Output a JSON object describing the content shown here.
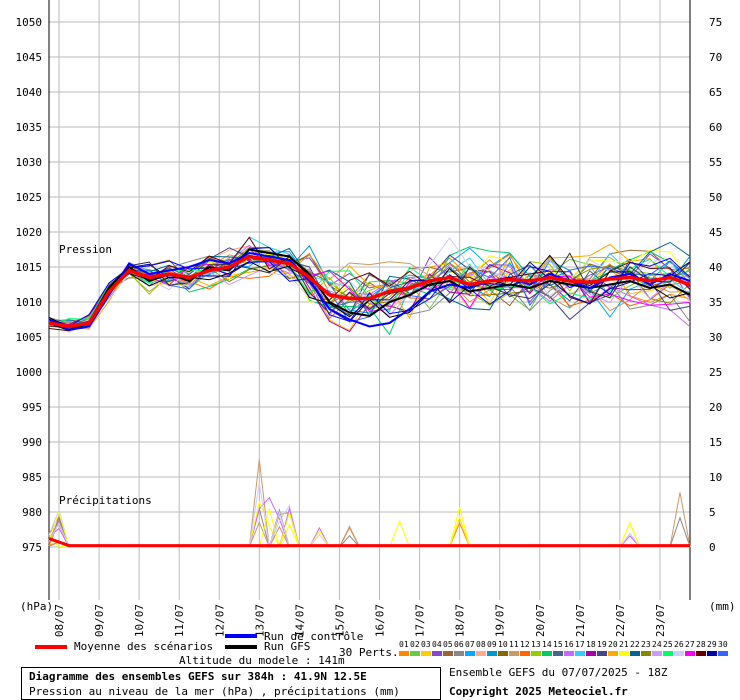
{
  "chart_data": {
    "type": "line",
    "title": "Diagramme des ensembles GEFS sur 384h : 41.9N 12.5E",
    "subtitle": "Pression au niveau de la mer (hPa) , précipitations (mm)",
    "left_axis": {
      "label": "(hPa)",
      "ticks": [
        1050,
        1045,
        1040,
        1035,
        1030,
        1025,
        1020,
        1015,
        1010,
        1005,
        1000,
        995,
        990,
        985,
        980,
        975
      ],
      "ylim": [
        972,
        1052
      ]
    },
    "right_axis": {
      "label": "(mm)",
      "ticks": [
        75,
        70,
        65,
        60,
        55,
        50,
        45,
        40,
        35,
        30,
        25,
        20,
        15,
        10,
        5,
        0
      ]
    },
    "x_ticks": [
      "08/07",
      "09/07",
      "10/07",
      "11/07",
      "12/07",
      "13/07",
      "14/07",
      "15/07",
      "16/07",
      "17/07",
      "18/07",
      "19/07",
      "20/07",
      "21/07",
      "22/07",
      "23/07"
    ],
    "xlim": [
      0,
      384
    ],
    "grid": true,
    "annotations": {
      "pressure": "Pression",
      "precip": "Précipitations"
    },
    "series": [
      {
        "name": "Moyenne des scénarios",
        "color": "#ff0000",
        "x": [
          0,
          12,
          24,
          36,
          48,
          60,
          72,
          84,
          96,
          108,
          120,
          132,
          144,
          156,
          168,
          180,
          192,
          204,
          216,
          228,
          240,
          252,
          264,
          276,
          288,
          300,
          312,
          324,
          336,
          348,
          360,
          372,
          384
        ],
        "values": [
          1007,
          1006.5,
          1007,
          1011.5,
          1014.5,
          1013.5,
          1014,
          1013.5,
          1014.5,
          1015,
          1016.5,
          1016,
          1015.5,
          1013.5,
          1011,
          1010.5,
          1010.5,
          1011.5,
          1012,
          1013,
          1013.5,
          1012.5,
          1013,
          1013.2,
          1013,
          1013.5,
          1013,
          1012.8,
          1013.3,
          1013.5,
          1013,
          1013.5,
          1012.5
        ]
      },
      {
        "name": "Run de contrôle",
        "color": "#0000ff",
        "x": [
          0,
          12,
          24,
          36,
          48,
          60,
          72,
          84,
          96,
          108,
          120,
          132,
          144,
          156,
          168,
          180,
          192,
          204,
          216,
          228,
          240,
          252,
          264,
          276,
          288,
          300,
          312,
          324,
          336,
          348,
          360,
          372,
          384
        ],
        "values": [
          1007.5,
          1006,
          1006.5,
          1011,
          1015.5,
          1014,
          1014.5,
          1015,
          1016,
          1015.5,
          1017,
          1016.5,
          1016,
          1013,
          1009,
          1007.5,
          1006.5,
          1007,
          1009,
          1011.5,
          1012.5,
          1012,
          1013,
          1013.5,
          1012.5,
          1014,
          1013,
          1012,
          1013.5,
          1014,
          1012.5,
          1014,
          1013
        ]
      },
      {
        "name": "Run GFS",
        "color": "#000000",
        "x": [
          0,
          12,
          24,
          36,
          48,
          60,
          72,
          84,
          96,
          108,
          120,
          132,
          144,
          156,
          168,
          180,
          192,
          204,
          216,
          228,
          240,
          252,
          264,
          276,
          288,
          300,
          312,
          324,
          336,
          348,
          360,
          372,
          384
        ],
        "values": [
          1007,
          1006,
          1007,
          1012,
          1015,
          1013,
          1014,
          1013,
          1015,
          1014.5,
          1017.5,
          1017,
          1016.5,
          1014,
          1010,
          1008.5,
          1008,
          1010,
          1011,
          1012.5,
          1013,
          1011.5,
          1012,
          1012.5,
          1012,
          1013,
          1012.5,
          1012,
          1012.5,
          1013,
          1012,
          1012.5,
          1011
        ]
      }
    ],
    "precip_spikes": [
      {
        "x": 6,
        "mm": 5.5
      },
      {
        "x": 123,
        "mm": 13
      },
      {
        "x": 129,
        "mm": 7.5
      },
      {
        "x": 141,
        "mm": 6
      },
      {
        "x": 162,
        "mm": 4
      },
      {
        "x": 180,
        "mm": 3.5
      },
      {
        "x": 210,
        "mm": 4
      },
      {
        "x": 246,
        "mm": 7.5
      },
      {
        "x": 348,
        "mm": 3.5
      },
      {
        "x": 378,
        "mm": 8
      }
    ]
  },
  "legend": {
    "mean": "Moyenne des scénarios",
    "control": "Run de contrôle",
    "gfs": "Run GFS",
    "perts": "30 Perts.",
    "altitude": "Altitude du modele : 141m",
    "pert_numbers": [
      "01",
      "02",
      "03",
      "04",
      "05",
      "06",
      "07",
      "08",
      "09",
      "10",
      "11",
      "12",
      "13",
      "14",
      "15",
      "16",
      "17",
      "18",
      "19",
      "20",
      "21",
      "22",
      "23",
      "24",
      "25",
      "26",
      "27",
      "28",
      "29",
      "30"
    ],
    "pert_colors": [
      "#ff8800",
      "#66cc44",
      "#ffcc00",
      "#8844cc",
      "#996633",
      "#888888",
      "#00aaff",
      "#ffaa88",
      "#0099cc",
      "#886600",
      "#cc9966",
      "#ff6600",
      "#99cc00",
      "#00cc66",
      "#446688",
      "#cc66ff",
      "#33ccff",
      "#aa00aa",
      "#444488",
      "#ffaa00",
      "#ffff00",
      "#006699",
      "#888800",
      "#cc99ff",
      "#00ff66",
      "#ccccff",
      "#ff00ff",
      "#660000",
      "#0000aa",
      "#3366ff"
    ]
  },
  "footer": {
    "title": "Diagramme des ensembles GEFS sur 384h : 41.9N 12.5E",
    "subtitle": "Pression au niveau de la mer (hPa) , précipitations (mm)",
    "run": "Ensemble GEFS du 07/07/2025 - 18Z",
    "copyright": "Copyright 2025 Meteociel.fr"
  }
}
